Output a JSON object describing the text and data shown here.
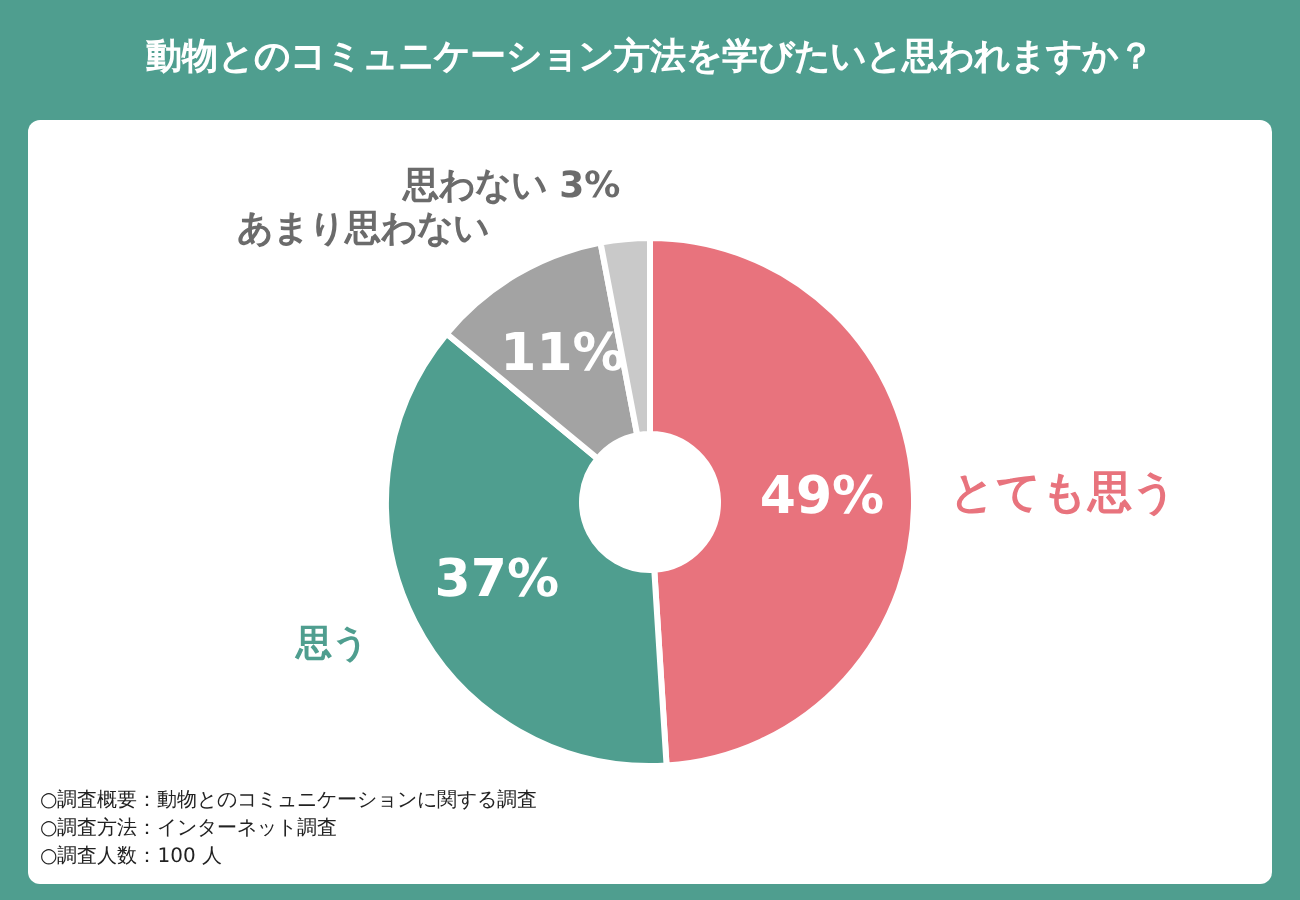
{
  "chart_data": {
    "type": "donut",
    "title": "動物とのコミュニケーション方法を学びたいと思われますか？",
    "categories": [
      "とても思う",
      "思う",
      "あまり思わない",
      "思わない"
    ],
    "values": [
      49,
      37,
      11,
      3
    ],
    "colors": [
      "#e8737d",
      "#4f9e8f",
      "#a3a3a3",
      "#c9c9c9"
    ],
    "value_labels": [
      "49%",
      "37%",
      "11%",
      "3%"
    ],
    "annotations": [
      "○調査概要：動物とのコミュニケーションに関する調査",
      "○調査方法：インターネット調査",
      "○調査人数：100 人"
    ]
  }
}
